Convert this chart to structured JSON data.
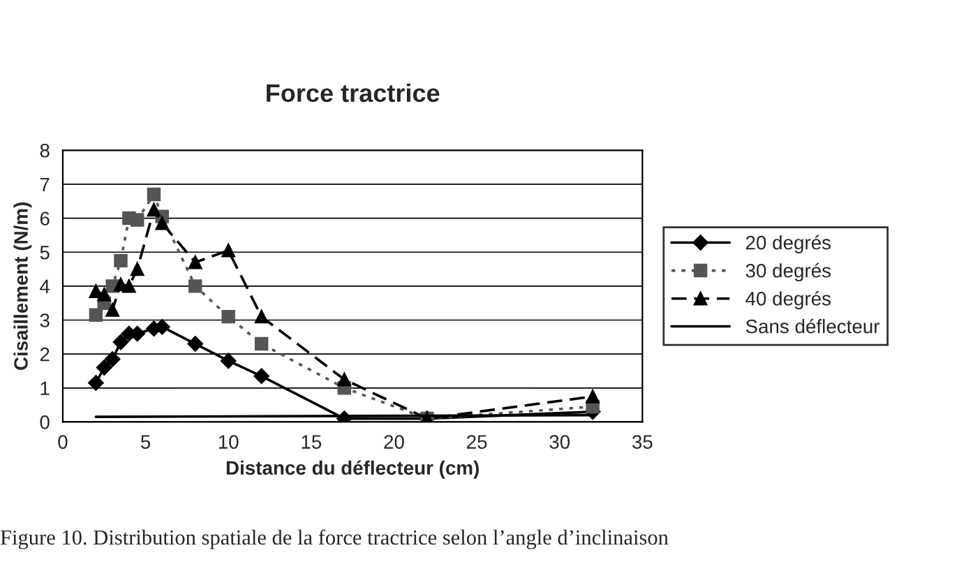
{
  "chart_data": {
    "type": "line",
    "title": "Force tractrice",
    "xlabel": "Distance du déflecteur (cm)",
    "ylabel": "Cisaillement (N/m)",
    "annotations": [
      "Figure 10. Distribution spatiale de la force tractrice selon l’angle d’inclinaison"
    ],
    "xlim": [
      0,
      35
    ],
    "xticks": [
      0,
      5,
      10,
      15,
      20,
      25,
      30,
      35
    ],
    "ylim": [
      0,
      8
    ],
    "yticks": [
      0,
      1,
      2,
      3,
      4,
      5,
      6,
      7,
      8
    ],
    "grid": "y",
    "legend": "right",
    "series": [
      {
        "name": "20 degrés",
        "color": "#000000",
        "marker": "diamond",
        "line_style": "solid",
        "x": [
          2,
          2.5,
          3,
          3.5,
          4,
          4.5,
          5.5,
          6,
          8,
          10,
          12,
          17,
          22,
          32
        ],
        "values": [
          1.15,
          1.6,
          1.85,
          2.35,
          2.6,
          2.6,
          2.75,
          2.8,
          2.3,
          1.8,
          1.35,
          0.1,
          0.1,
          0.3
        ]
      },
      {
        "name": "30 degrés",
        "color": "#555555",
        "marker": "square",
        "line_style": "dotted",
        "x": [
          2,
          2.5,
          3,
          3.5,
          4,
          4.5,
          5.5,
          6,
          8,
          10,
          12,
          17,
          22,
          32
        ],
        "values": [
          3.15,
          3.5,
          4.0,
          4.75,
          6.0,
          5.95,
          6.7,
          6.05,
          4.0,
          3.1,
          2.3,
          1.0,
          0.1,
          0.45
        ]
      },
      {
        "name": "40 degrés",
        "color": "#000000",
        "marker": "triangle",
        "line_style": "dashed",
        "x": [
          2,
          2.5,
          3,
          3.5,
          4,
          4.5,
          5.5,
          6,
          8,
          10,
          12,
          17,
          22,
          32
        ],
        "values": [
          3.85,
          3.75,
          3.3,
          4.05,
          4.0,
          4.5,
          6.25,
          5.85,
          4.7,
          5.05,
          3.1,
          1.25,
          0.1,
          0.75
        ]
      },
      {
        "name": "Sans déflecteur",
        "color": "#000000",
        "marker": "none",
        "line_style": "solid",
        "x": [
          2,
          32
        ],
        "values": [
          0.15,
          0.2
        ]
      }
    ]
  }
}
